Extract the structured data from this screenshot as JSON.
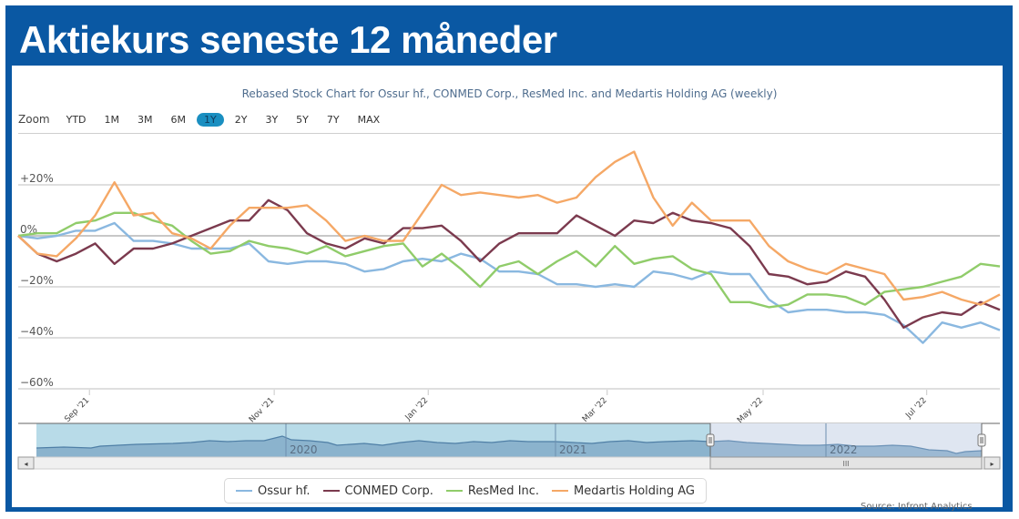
{
  "page": {
    "title": "Aktiekurs seneste 12 måneder",
    "source": "Source: Infront Analytics"
  },
  "zoom": {
    "label": "Zoom",
    "buttons": [
      "YTD",
      "1M",
      "3M",
      "6M",
      "1Y",
      "2Y",
      "3Y",
      "5Y",
      "7Y",
      "MAX"
    ],
    "active": "1Y"
  },
  "colors": {
    "frame": "#0a58a3",
    "ossur": "#8ab8e0",
    "conmed": "#7b3a4e",
    "resmed": "#90cc6a",
    "medartis": "#f5a866",
    "zoom_active": "#1a8fc1",
    "navigator_fill": "#7fa9c6",
    "navigator_selected": "#b8dbe8"
  },
  "chart_data": {
    "type": "line",
    "title": "Rebased Stock Chart for Ossur hf., CONMED Corp., ResMed Inc. and Medartis Holding AG (weekly)",
    "xlabel": "",
    "ylabel": "",
    "ylim": [
      -60,
      30
    ],
    "yticks": [
      20,
      0,
      -20,
      -40,
      -60
    ],
    "ytick_labels": [
      "+20%",
      "0%",
      "−20%",
      "−40%",
      "−60%"
    ],
    "xtick_labels": [
      "Sep '21",
      "Nov '21",
      "Jan '22",
      "Mar '22",
      "May '22",
      "Jul '22"
    ],
    "xtick_index": [
      3.7,
      13.3,
      21.3,
      30.6,
      38.7,
      47.2
    ],
    "grid": true,
    "legend_position": "bottom-center",
    "n_points": 52,
    "series": [
      {
        "name": "Ossur hf.",
        "color_key": "ossur",
        "values": [
          0,
          -1,
          0,
          2,
          2,
          5,
          -2,
          -2,
          -3,
          -5,
          -5,
          -5,
          -3,
          -10,
          -11,
          -10,
          -10,
          -11,
          -14,
          -13,
          -10,
          -9,
          -10,
          -7,
          -9,
          -14,
          -14,
          -15,
          -19,
          -19,
          -20,
          -19,
          -20,
          -14,
          -15,
          -17,
          -14,
          -15,
          -15,
          -25,
          -30,
          -29,
          -29,
          -30,
          -30,
          -31,
          -35,
          -42,
          -34,
          -36,
          -34,
          -37
        ]
      },
      {
        "name": "CONMED Corp.",
        "color_key": "conmed",
        "values": [
          0,
          -7,
          -10,
          -7,
          -3,
          -11,
          -5,
          -5,
          -3,
          0,
          3,
          6,
          6,
          14,
          10,
          1,
          -3,
          -5,
          -1,
          -3,
          3,
          3,
          4,
          -2,
          -10,
          -3,
          1,
          1,
          1,
          8,
          4,
          0,
          6,
          5,
          9,
          6,
          5,
          3,
          -4,
          -15,
          -16,
          -19,
          -18,
          -14,
          -16,
          -25,
          -36,
          -32,
          -30,
          -31,
          -26,
          -29
        ]
      },
      {
        "name": "ResMed Inc.",
        "color_key": "resmed",
        "values": [
          0,
          1,
          1,
          5,
          6,
          9,
          9,
          6,
          4,
          -2,
          -7,
          -6,
          -2,
          -4,
          -5,
          -7,
          -4,
          -8,
          -6,
          -4,
          -3,
          -12,
          -7,
          -13,
          -20,
          -12,
          -10,
          -15,
          -10,
          -6,
          -12,
          -4,
          -11,
          -9,
          -8,
          -13,
          -15,
          -26,
          -26,
          -28,
          -27,
          -23,
          -23,
          -24,
          -27,
          -22,
          -21,
          -20,
          -18,
          -16,
          -11,
          -12
        ]
      },
      {
        "name": "Medartis Holding AG",
        "color_key": "medartis",
        "values": [
          0,
          -7,
          -8,
          -1,
          8,
          21,
          8,
          9,
          1,
          -1,
          -5,
          4,
          11,
          11,
          11,
          12,
          6,
          -2,
          0,
          -2,
          -2,
          9,
          20,
          16,
          17,
          16,
          15,
          16,
          13,
          15,
          23,
          29,
          33,
          15,
          4,
          13,
          6,
          6,
          6,
          -4,
          -10,
          -13,
          -15,
          -11,
          -13,
          -15,
          -25,
          -24,
          -22,
          -25,
          -27,
          -23
        ]
      }
    ]
  },
  "navigator": {
    "year_labels": [
      "2020",
      "2021",
      "2022"
    ],
    "scrollbar_grip": "III",
    "left_arrow": "◂",
    "right_arrow": "▸"
  }
}
